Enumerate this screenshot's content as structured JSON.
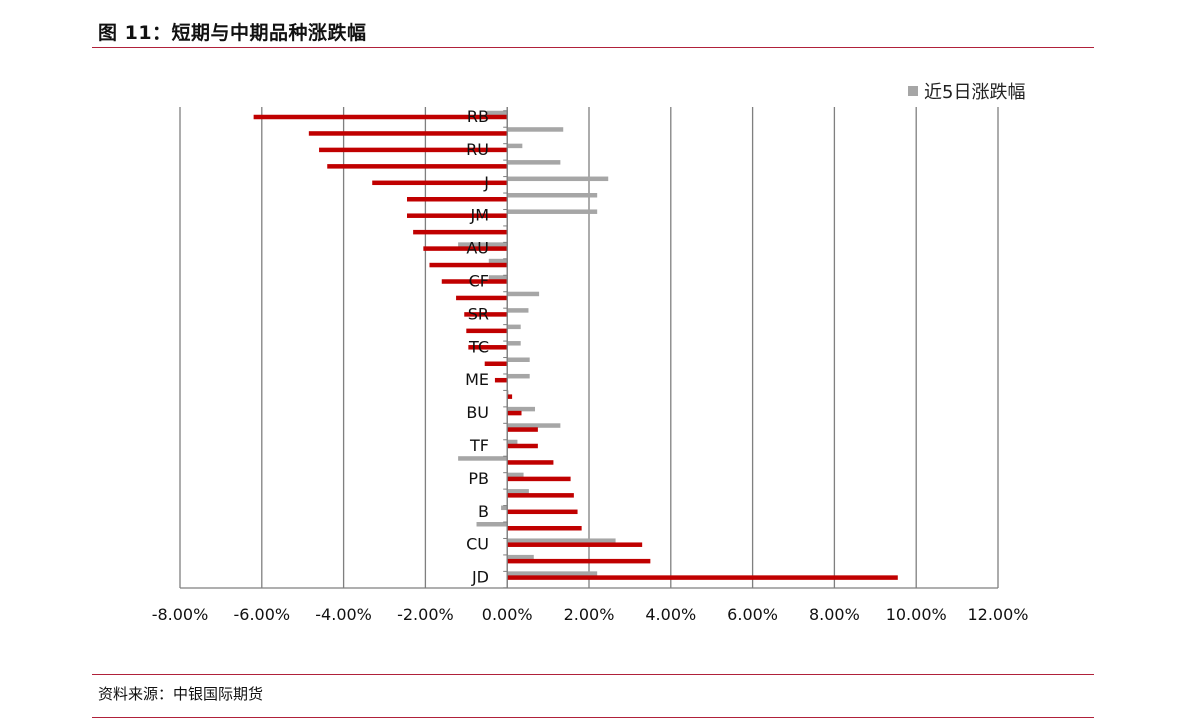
{
  "header": {
    "title": "图 11：短期与中期品种涨跌幅"
  },
  "footer": {
    "source": "资料来源：中银国际期货"
  },
  "colors": {
    "accent_rule": "#b0213a",
    "series_1d": "#c00000",
    "series_5d": "#a6a6a6",
    "grid": "#7f7f7f"
  },
  "chart_data": {
    "type": "bar",
    "orientation": "horizontal",
    "xlim": [
      -0.08,
      0.12
    ],
    "x_ticks": [
      "-8.00%",
      "-6.00%",
      "-4.00%",
      "-2.00%",
      "0.00%",
      "2.00%",
      "4.00%",
      "6.00%",
      "8.00%",
      "10.00%",
      "12.00%"
    ],
    "grid": true,
    "legend_position": "top-right",
    "labeled_categories": [
      "RB",
      "RU",
      "J",
      "JM",
      "AU",
      "CF",
      "SR",
      "TC",
      "ME",
      "BU",
      "TF",
      "PB",
      "B",
      "CU",
      "JD"
    ],
    "series": [
      {
        "name": "",
        "values": [
          -0.062,
          -0.0485,
          -0.046,
          -0.044,
          -0.033,
          -0.0245,
          -0.0245,
          -0.023,
          -0.0205,
          -0.019,
          -0.016,
          -0.0125,
          -0.0105,
          -0.01,
          -0.0095,
          -0.0055,
          -0.003,
          0.0012,
          0.0035,
          0.0075,
          0.0075,
          0.0113,
          0.0155,
          0.0163,
          0.0172,
          0.0182,
          0.033,
          0.035,
          0.0955
        ]
      },
      {
        "name": "近5日涨跌幅",
        "values": [
          -0.005,
          0.0137,
          0.0037,
          0.013,
          0.0247,
          0.022,
          0.022,
          -0.0002,
          -0.012,
          -0.0045,
          -0.0045,
          0.0078,
          0.0052,
          0.0033,
          0.0033,
          0.0055,
          0.0055,
          0.0003,
          0.0068,
          0.013,
          0.0025,
          -0.012,
          0.004,
          0.0053,
          -0.0015,
          -0.0075,
          0.0265,
          0.0065,
          0.022
        ]
      }
    ]
  }
}
